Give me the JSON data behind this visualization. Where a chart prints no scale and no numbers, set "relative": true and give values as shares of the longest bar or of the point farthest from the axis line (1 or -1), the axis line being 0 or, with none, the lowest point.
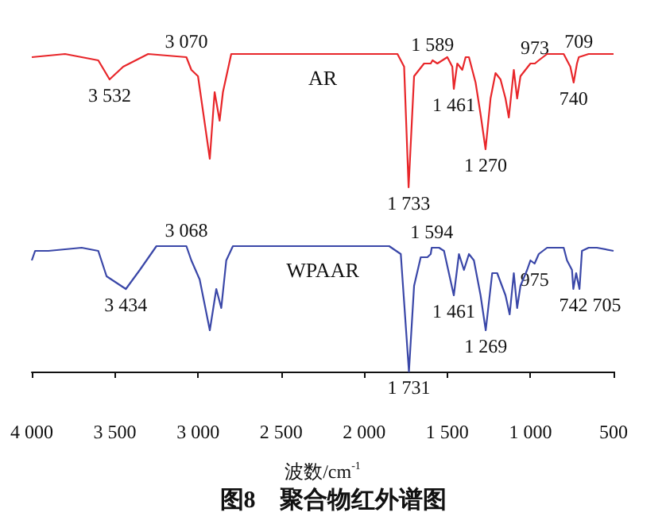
{
  "chart_data": {
    "type": "line",
    "title": "图8　聚合物红外谱图",
    "xlabel": "波数/cm$^{-1}$",
    "relative": true,
    "legend": false,
    "grid": false,
    "tick_labels": "x",
    "marker": "none",
    "line_style": "solid",
    "xlim": [
      4000,
      500
    ],
    "xticks": [
      {
        "value": 4000,
        "label": "4 000"
      },
      {
        "value": 3500,
        "label": "3 500"
      },
      {
        "value": 3000,
        "label": "3 000"
      },
      {
        "value": 2500,
        "label": "2 500"
      },
      {
        "value": 2000,
        "label": "2 000"
      },
      {
        "value": 1500,
        "label": "1 500"
      },
      {
        "value": 1000,
        "label": "1 000"
      },
      {
        "value": 500,
        "label": "500"
      }
    ],
    "series": [
      {
        "name": "AR",
        "color": "#e8262a",
        "x": [
          4000,
          3800,
          3700,
          3600,
          3532,
          3450,
          3300,
          3070,
          3040,
          3000,
          2929,
          2900,
          2870,
          2850,
          2800,
          2000,
          1800,
          1760,
          1733,
          1700,
          1640,
          1600,
          1589,
          1560,
          1500,
          1470,
          1461,
          1440,
          1410,
          1390,
          1370,
          1330,
          1300,
          1270,
          1240,
          1210,
          1180,
          1150,
          1130,
          1100,
          1080,
          1060,
          1000,
          973,
          950,
          900,
          850,
          800,
          760,
          740,
          720,
          709,
          650,
          500
        ],
        "values": [
          0.99,
          1.0,
          0.99,
          0.98,
          0.92,
          0.96,
          1.0,
          0.99,
          0.95,
          0.93,
          0.67,
          0.88,
          0.79,
          0.88,
          1.0,
          1.0,
          1.0,
          0.96,
          0.58,
          0.93,
          0.97,
          0.97,
          0.98,
          0.97,
          0.99,
          0.96,
          0.89,
          0.97,
          0.95,
          0.99,
          0.99,
          0.91,
          0.81,
          0.7,
          0.86,
          0.94,
          0.92,
          0.86,
          0.8,
          0.95,
          0.86,
          0.93,
          0.97,
          0.97,
          0.98,
          1.0,
          1.0,
          1.0,
          0.96,
          0.91,
          0.97,
          0.99,
          1.0,
          1.0
        ]
      },
      {
        "name": "WPAAR",
        "color": "#3a47a8",
        "x": [
          4000,
          3980,
          3900,
          3700,
          3600,
          3550,
          3434,
          3350,
          3250,
          3070,
          3040,
          2990,
          2929,
          2890,
          2860,
          2830,
          2790,
          1850,
          1780,
          1731,
          1700,
          1660,
          1620,
          1600,
          1594,
          1550,
          1520,
          1461,
          1430,
          1400,
          1370,
          1340,
          1300,
          1269,
          1230,
          1200,
          1150,
          1125,
          1100,
          1080,
          1060,
          1020,
          1000,
          975,
          950,
          900,
          850,
          800,
          780,
          750,
          742,
          725,
          705,
          690,
          650,
          600,
          500
        ],
        "values": [
          0.35,
          0.38,
          0.38,
          0.39,
          0.38,
          0.3,
          0.26,
          0.32,
          0.395,
          0.395,
          0.35,
          0.29,
          0.13,
          0.26,
          0.2,
          0.35,
          0.395,
          0.395,
          0.37,
          0,
          0.27,
          0.36,
          0.36,
          0.37,
          0.39,
          0.39,
          0.38,
          0.24,
          0.37,
          0.32,
          0.37,
          0.35,
          0.24,
          0.13,
          0.31,
          0.31,
          0.24,
          0.18,
          0.31,
          0.2,
          0.27,
          0.32,
          0.35,
          0.34,
          0.37,
          0.39,
          0.39,
          0.39,
          0.35,
          0.32,
          0.26,
          0.31,
          0.26,
          0.38,
          0.39,
          0.39,
          0.38
        ]
      }
    ],
    "annotations": [
      {
        "text": "3 532",
        "x": 3532,
        "y": 0.92
      },
      {
        "text": "3 070",
        "x": 3070,
        "y": 0.99
      },
      {
        "text": "1 589",
        "x": 1589,
        "y": 0.98
      },
      {
        "text": "1 461",
        "x": 1461,
        "y": 0.89
      },
      {
        "text": "1 270",
        "x": 1270,
        "y": 0.7
      },
      {
        "text": "973",
        "x": 973,
        "y": 0.97
      },
      {
        "text": "740",
        "x": 740,
        "y": 0.91
      },
      {
        "text": "709",
        "x": 709,
        "y": 0.99
      },
      {
        "text": "1 733",
        "x": 1733,
        "y": 0.58
      },
      {
        "text": "3 068",
        "x": 3070,
        "y": 0.395
      },
      {
        "text": "3 434",
        "x": 3434,
        "y": 0.26
      },
      {
        "text": "1 594",
        "x": 1594,
        "y": 0.39
      },
      {
        "text": "1 461",
        "x": 1461,
        "y": 0.24
      },
      {
        "text": "1 269",
        "x": 1269,
        "y": 0.13
      },
      {
        "text": "975",
        "x": 975,
        "y": 0.34
      },
      {
        "text": "742",
        "x": 742,
        "y": 0.26
      },
      {
        "text": "705",
        "x": 705,
        "y": 0.26
      },
      {
        "text": "1 731",
        "x": 1731,
        "y": 0
      }
    ]
  }
}
